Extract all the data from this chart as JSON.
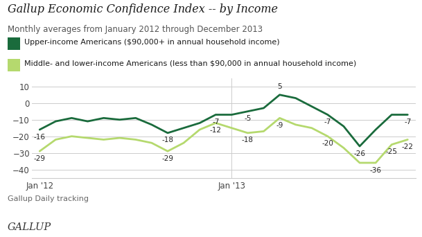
{
  "title": "Gallup Economic Confidence Index -- by Income",
  "subtitle": "Monthly averages from January 2012 through December 2013",
  "legend_upper": "Upper-income Americans ($90,000+ in annual household income)",
  "legend_middle": "Middle- and lower-income Americans (less than $90,000 in annual household income)",
  "source": "Gallup Daily tracking",
  "brand": "GALLUP",
  "upper_income": [
    -16,
    -11,
    -9,
    -11,
    -9,
    -10,
    -9,
    -13,
    -18,
    -15,
    -12,
    -7,
    -7,
    -5,
    -3,
    5,
    3,
    -2,
    -7,
    -14,
    -26,
    -16,
    -7,
    -7
  ],
  "middle_lower": [
    -29,
    -22,
    -20,
    -21,
    -22,
    -21,
    -22,
    -24,
    -29,
    -24,
    -16,
    -12,
    -15,
    -18,
    -17,
    -9,
    -13,
    -15,
    -20,
    -27,
    -36,
    -36,
    -25,
    -22
  ],
  "upper_color": "#1a6b3c",
  "lower_color": "#b5d96e",
  "ylim": [
    -45,
    15
  ],
  "yticks": [
    -40,
    -30,
    -20,
    -10,
    0,
    10
  ],
  "grid_color": "#cccccc",
  "background_color": "#ffffff",
  "title_fontsize": 11.5,
  "subtitle_fontsize": 8.5,
  "legend_fontsize": 8.0,
  "tick_fontsize": 8.5,
  "annot_fontsize": 7.5,
  "source_fontsize": 8.0,
  "brand_fontsize": 10.5,
  "ann_upper_x": [
    0,
    8,
    11,
    13,
    15,
    18,
    20,
    23
  ],
  "ann_upper_v": [
    -16,
    -18,
    -7,
    -5,
    5,
    -7,
    -26,
    -7
  ],
  "ann_lower_x": [
    0,
    8,
    11,
    13,
    15,
    18,
    21,
    22,
    23
  ],
  "ann_lower_v": [
    -29,
    -29,
    -12,
    -18,
    -9,
    -20,
    -36,
    -25,
    -22
  ]
}
